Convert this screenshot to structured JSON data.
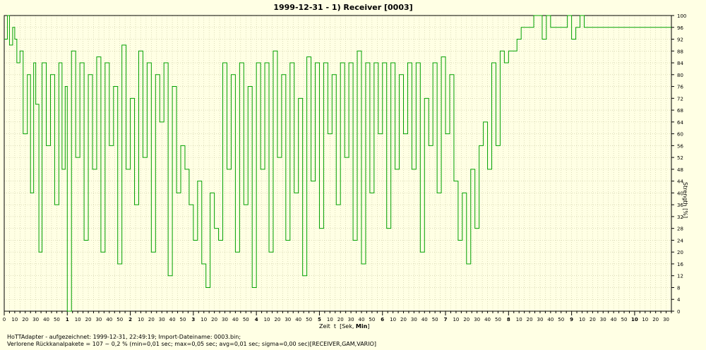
{
  "chart_data": {
    "type": "line",
    "title": "1999-12-31 - 1) Receiver [0003]",
    "xlabel_prefix": "Zeit  t  [Sek,",
    "xlabel_bold": "Min",
    "xlabel_suffix": "]",
    "ylabel": "Strength  [%]",
    "ylim": [
      0,
      100
    ],
    "yticks": [
      0,
      4,
      8,
      12,
      16,
      20,
      24,
      28,
      32,
      36,
      40,
      44,
      48,
      52,
      56,
      60,
      64,
      68,
      72,
      76,
      80,
      84,
      88,
      92,
      96,
      100
    ],
    "xlim_seconds": [
      0,
      635
    ],
    "xticks_seconds_step": 5,
    "x_label_step": 10,
    "grid": true,
    "line_color": "#00a000",
    "grid_color": "#c8c8a0",
    "series": [
      {
        "x": [
          0,
          3,
          5,
          8,
          10,
          12,
          15,
          18,
          22,
          25,
          28,
          30,
          33,
          36,
          40,
          44,
          48,
          52,
          55,
          58,
          60,
          64,
          68,
          72,
          76,
          80,
          84,
          88,
          92,
          96,
          100,
          104,
          108,
          112,
          116,
          120,
          124,
          128,
          132,
          136,
          140,
          144,
          148,
          152,
          156,
          160,
          164,
          168,
          172,
          176,
          180,
          184,
          188,
          192,
          196,
          200,
          204,
          208,
          212,
          216,
          220,
          224,
          228,
          232,
          236,
          240,
          244,
          248,
          252,
          256,
          260,
          264,
          268,
          272,
          276,
          280,
          284,
          288,
          292,
          296,
          300,
          304,
          308,
          312,
          316,
          320,
          324,
          328,
          332,
          336,
          340,
          344,
          348,
          352,
          356,
          360,
          364,
          368,
          372,
          376,
          380,
          384,
          388,
          392,
          396,
          400,
          404,
          408,
          412,
          416,
          420,
          424,
          428,
          432,
          436,
          440,
          444,
          448,
          452,
          456,
          460,
          464,
          468,
          472,
          476,
          480,
          484,
          488,
          492,
          496,
          500,
          504,
          508,
          512,
          516,
          520,
          524,
          528,
          532,
          536,
          540,
          544,
          548,
          552,
          556,
          560,
          564,
          568,
          572,
          576,
          580,
          584,
          588,
          592,
          596,
          600,
          604,
          608,
          612,
          616,
          620,
          625,
          630,
          635
        ],
        "y": [
          92,
          100,
          90,
          96,
          92,
          84,
          88,
          60,
          80,
          40,
          84,
          70,
          20,
          84,
          56,
          80,
          36,
          84,
          48,
          76,
          0,
          88,
          52,
          84,
          24,
          80,
          48,
          86,
          20,
          84,
          56,
          76,
          16,
          90,
          48,
          72,
          36,
          88,
          52,
          84,
          20,
          80,
          64,
          84,
          12,
          76,
          40,
          56,
          48,
          36,
          24,
          44,
          16,
          8,
          40,
          28,
          24,
          84,
          48,
          80,
          20,
          84,
          36,
          76,
          8,
          84,
          48,
          84,
          20,
          88,
          52,
          80,
          24,
          84,
          40,
          72,
          12,
          86,
          44,
          84,
          28,
          84,
          60,
          80,
          36,
          84,
          52,
          84,
          24,
          88,
          16,
          84,
          40,
          84,
          60,
          84,
          28,
          84,
          48,
          80,
          60,
          84,
          48,
          84,
          20,
          72,
          56,
          84,
          40,
          86,
          60,
          80,
          44,
          24,
          40,
          16,
          48,
          28,
          56,
          64,
          48,
          84,
          56,
          88,
          84,
          88,
          88,
          92,
          96,
          96,
          96,
          100,
          100,
          92,
          100,
          96,
          96,
          96,
          96,
          100,
          92,
          96,
          100,
          96,
          96,
          96,
          96,
          96,
          96,
          96,
          96,
          96,
          96,
          96,
          96,
          96,
          96,
          96,
          96,
          96,
          96,
          96,
          96,
          96
        ]
      }
    ]
  },
  "footer": {
    "line1": "HoTTAdapter - aufgezeichnet: 1999-12-31, 22:49:19; Import-Dateiname: 0003.bin;",
    "line2": "Verlorene Rückkanalpakete = 107 ~ 0,2 % (min=0,01 sec; max=0,05 sec; avg=0,01 sec; sigma=0,00 sec)[RECEIVER,GAM,VARIO]"
  }
}
